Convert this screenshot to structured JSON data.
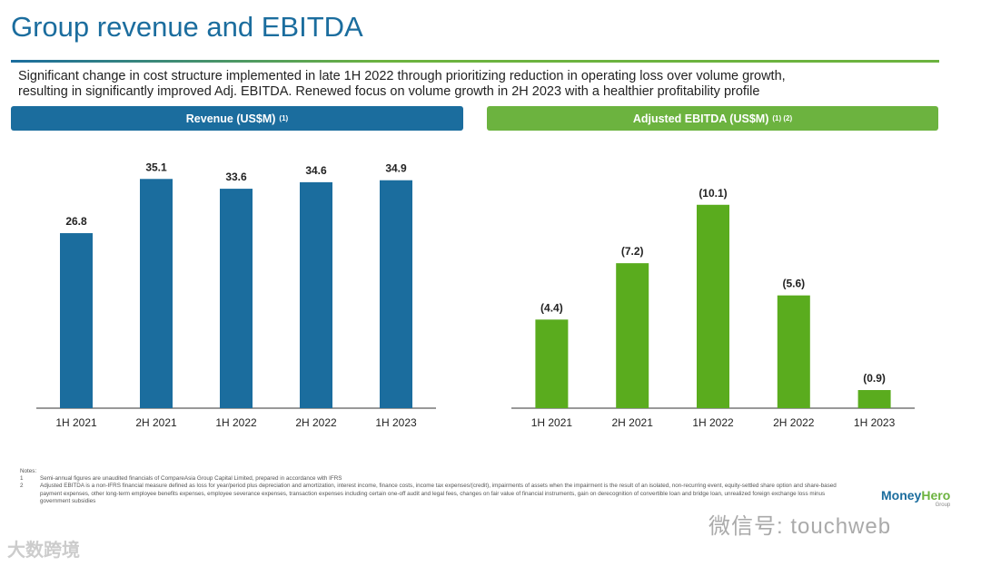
{
  "title": "Group revenue and EBITDA",
  "subtitle_line1": "Significant change in cost structure implemented in late 1H 2022 through prioritizing reduction in operating loss over volume growth,",
  "subtitle_line2": "resulting in significantly improved Adj. EBITDA. Renewed focus on volume growth in 2H 2023 with a healthier profitability profile",
  "chart_data": [
    {
      "type": "bar",
      "title": "Revenue (US$M)",
      "title_sup": "(1)",
      "categories": [
        "1H 2021",
        "2H 2021",
        "1H 2022",
        "2H 2022",
        "1H 2023"
      ],
      "values": [
        26.8,
        35.1,
        33.6,
        34.6,
        34.9
      ],
      "labels": [
        "26.8",
        "35.1",
        "33.6",
        "34.6",
        "34.9"
      ],
      "color": "#1b6d9e",
      "ylim": [
        0,
        40
      ]
    },
    {
      "type": "bar",
      "title": "Adjusted EBITDA (US$M)",
      "title_sup": "(1) (2)",
      "categories": [
        "1H 2021",
        "2H 2021",
        "1H 2022",
        "2H 2022",
        "1H 2023"
      ],
      "values": [
        -4.4,
        -7.2,
        -10.1,
        -5.6,
        -0.9
      ],
      "labels": [
        "(4.4)",
        "(7.2)",
        "(10.1)",
        "(5.6)",
        "(0.9)"
      ],
      "color": "#5aac1e",
      "ylim": [
        -11,
        0
      ]
    }
  ],
  "notes": {
    "heading": "Notes:",
    "items": [
      {
        "num": "1",
        "text": "Semi-annual figures are unaudited financials of CompareAsia Group Capital Limited, prepared in accordance with IFRS"
      },
      {
        "num": "2",
        "text": "Adjusted EBITDA is a non-IFRS financial measure defined as loss for year/period plus depreciation and amortization, interest income, finance costs, income tax expenses/(credit), impairments of assets when the impairment is the result of an isolated, non-recurring event, equity-settled share option and share-based payment expenses, other long-term employee benefits expenses, employee severance expenses, transaction expenses including certain one-off audit and legal fees, changes on fair value of financial instruments, gain on derecognition of convertible loan and bridge loan, unrealized foreign exchange loss minus government subsidies"
      }
    ]
  },
  "logo": {
    "money": "Money",
    "hero": "Hero",
    "group": "Group"
  },
  "watermark": "微信号: touchweb",
  "watermark2": "大数跨境"
}
